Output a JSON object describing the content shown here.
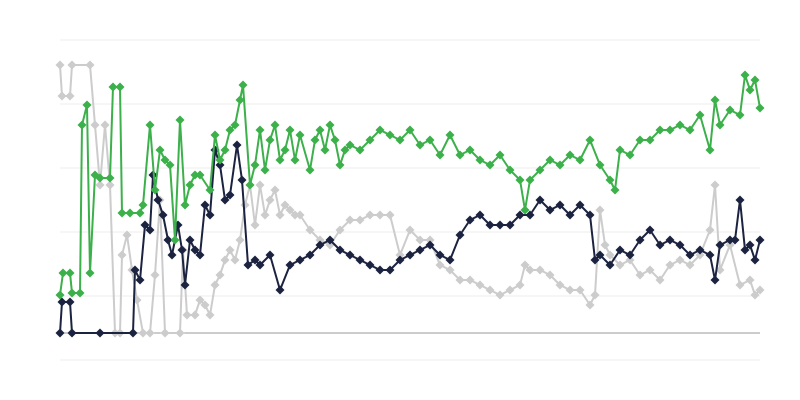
{
  "chart_data": {
    "type": "line",
    "grid": true,
    "xlim": [
      0,
      700
    ],
    "ylim": [
      -27,
      293
    ],
    "yticks": [
      -27,
      37,
      101,
      165,
      229,
      293
    ],
    "series": [
      {
        "color": "#cccccc",
        "x": [
          0,
          2,
          10,
          12,
          30,
          35,
          40,
          45,
          50,
          55,
          60,
          62,
          67,
          72,
          77,
          83,
          90,
          95,
          100,
          105,
          120,
          123,
          127,
          135,
          140,
          145,
          150,
          155,
          160,
          165,
          170,
          175,
          180,
          185,
          190,
          195,
          200,
          205,
          210,
          215,
          220,
          225,
          230,
          235,
          240,
          250,
          260,
          270,
          280,
          290,
          300,
          310,
          320,
          330,
          340,
          350,
          360,
          370,
          380,
          390,
          400,
          410,
          420,
          430,
          440,
          450,
          460,
          465,
          470,
          480,
          490,
          500,
          510,
          520,
          530,
          535,
          540,
          545,
          550,
          560,
          570,
          580,
          590,
          600,
          610,
          620,
          630,
          640,
          650,
          655,
          660,
          670,
          680,
          690,
          695,
          700
        ],
        "values": [
          268,
          237,
          237,
          268,
          268,
          208,
          148,
          208,
          148,
          0,
          0,
          78,
          98,
          63,
          33,
          0,
          0,
          58,
          133,
          0,
          0,
          83,
          18,
          18,
          33,
          28,
          18,
          48,
          58,
          73,
          83,
          73,
          93,
          128,
          148,
          108,
          148,
          118,
          133,
          143,
          118,
          128,
          123,
          118,
          118,
          103,
          93,
          88,
          103,
          113,
          113,
          118,
          118,
          118,
          78,
          103,
          93,
          93,
          68,
          63,
          53,
          53,
          48,
          43,
          38,
          43,
          48,
          68,
          63,
          63,
          58,
          48,
          43,
          43,
          28,
          38,
          123,
          88,
          78,
          68,
          73,
          58,
          63,
          53,
          68,
          73,
          68,
          78,
          103,
          148,
          63,
          88,
          48,
          53,
          38,
          43
        ]
      },
      {
        "color": "#1b2340",
        "x": [
          0,
          2,
          10,
          12,
          40,
          73,
          75,
          80,
          85,
          90,
          93,
          98,
          103,
          108,
          112,
          118,
          122,
          125,
          130,
          135,
          140,
          145,
          150,
          155,
          160,
          165,
          170,
          177,
          182,
          188,
          195,
          200,
          210,
          220,
          230,
          240,
          250,
          260,
          270,
          280,
          290,
          300,
          310,
          320,
          330,
          340,
          350,
          360,
          370,
          380,
          390,
          400,
          410,
          420,
          430,
          440,
          450,
          460,
          470,
          480,
          490,
          500,
          510,
          520,
          530,
          535,
          540,
          550,
          560,
          570,
          580,
          590,
          600,
          610,
          620,
          630,
          640,
          650,
          655,
          660,
          670,
          675,
          680,
          685,
          690,
          695,
          700
        ],
        "values": [
          0,
          31,
          31,
          0,
          0,
          0,
          63,
          53,
          108,
          103,
          158,
          133,
          118,
          93,
          78,
          108,
          83,
          48,
          93,
          83,
          78,
          128,
          118,
          183,
          168,
          133,
          138,
          188,
          153,
          68,
          73,
          68,
          78,
          43,
          68,
          73,
          78,
          88,
          93,
          83,
          78,
          73,
          68,
          63,
          63,
          73,
          78,
          83,
          88,
          78,
          73,
          98,
          113,
          118,
          108,
          108,
          108,
          118,
          118,
          133,
          123,
          128,
          118,
          128,
          118,
          73,
          78,
          68,
          83,
          78,
          93,
          103,
          88,
          93,
          88,
          78,
          83,
          78,
          53,
          88,
          93,
          93,
          133,
          83,
          88,
          73,
          93
        ]
      },
      {
        "color": "#3cb04a",
        "x": [
          0,
          3,
          10,
          12,
          20,
          22,
          27,
          30,
          35,
          40,
          50,
          53,
          60,
          62,
          70,
          80,
          83,
          90,
          95,
          100,
          105,
          110,
          115,
          120,
          125,
          130,
          135,
          140,
          150,
          155,
          160,
          165,
          170,
          175,
          180,
          183,
          190,
          195,
          200,
          205,
          210,
          215,
          220,
          225,
          230,
          235,
          240,
          250,
          255,
          260,
          265,
          270,
          275,
          280,
          285,
          290,
          300,
          310,
          320,
          330,
          340,
          350,
          360,
          370,
          380,
          390,
          400,
          410,
          420,
          430,
          440,
          450,
          460,
          465,
          470,
          480,
          490,
          500,
          510,
          520,
          530,
          540,
          550,
          555,
          560,
          570,
          580,
          590,
          600,
          610,
          620,
          630,
          640,
          650,
          655,
          660,
          670,
          680,
          685,
          690,
          695,
          700
        ],
        "values": [
          38,
          60,
          60,
          40,
          40,
          208,
          228,
          60,
          158,
          155,
          155,
          246,
          246,
          120,
          120,
          120,
          128,
          208,
          143,
          183,
          173,
          168,
          93,
          213,
          128,
          148,
          158,
          158,
          143,
          198,
          173,
          183,
          203,
          208,
          233,
          248,
          148,
          168,
          203,
          163,
          193,
          208,
          173,
          183,
          203,
          173,
          198,
          163,
          193,
          203,
          183,
          208,
          193,
          168,
          183,
          188,
          183,
          193,
          203,
          198,
          193,
          203,
          188,
          193,
          178,
          198,
          178,
          183,
          173,
          168,
          178,
          163,
          153,
          123,
          153,
          163,
          173,
          168,
          178,
          173,
          193,
          168,
          153,
          143,
          183,
          178,
          193,
          193,
          203,
          203,
          208,
          203,
          218,
          183,
          233,
          208,
          223,
          218,
          258,
          243,
          253,
          225
        ]
      }
    ]
  }
}
